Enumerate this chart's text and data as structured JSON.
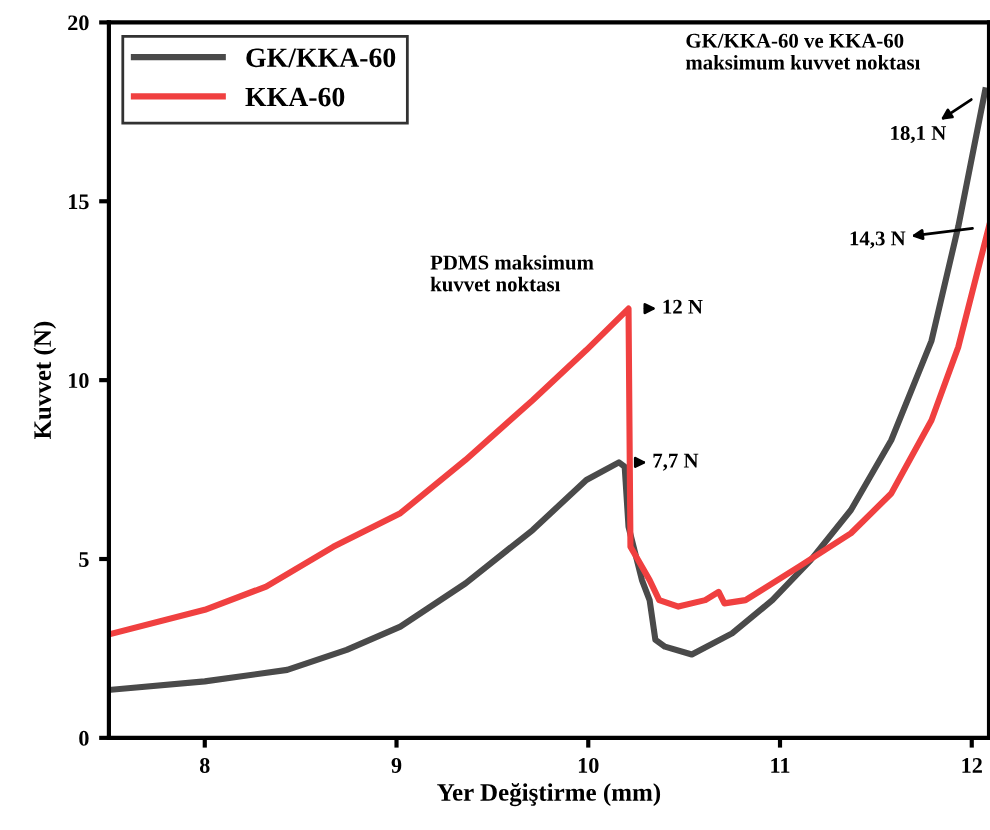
{
  "chart_data": {
    "type": "line",
    "xlabel": "Yer Değiştirme (mm)",
    "ylabel": "Kuvvet (N)",
    "xlim": [
      7.5,
      12.09
    ],
    "ylim": [
      0,
      20
    ],
    "xticks": [
      8,
      9,
      10,
      11,
      12
    ],
    "yticks": [
      0,
      5,
      10,
      15,
      20
    ],
    "grid": false,
    "legend": "top left",
    "marker": "none",
    "line_style": "solid",
    "series": [
      {
        "name": "GK/KKA-60",
        "color": "#4a4a4a",
        "x": [
          7.5,
          8.0,
          8.43,
          8.74,
          9.02,
          9.36,
          9.71,
          9.99,
          10.16,
          10.19,
          10.21,
          10.28,
          10.32,
          10.35,
          10.4,
          10.54,
          10.75,
          10.96,
          11.16,
          11.37,
          11.58,
          11.79,
          11.93,
          12.07
        ],
        "values": [
          1.34,
          1.58,
          1.9,
          2.46,
          3.11,
          4.32,
          5.81,
          7.21,
          7.7,
          7.58,
          5.9,
          4.41,
          3.85,
          2.74,
          2.55,
          2.33,
          2.92,
          3.85,
          4.97,
          6.37,
          8.32,
          11.1,
          14.3,
          18.1
        ]
      },
      {
        "name": "KKA-60",
        "color": "#f04040",
        "x": [
          7.5,
          8.0,
          8.32,
          8.67,
          9.02,
          9.36,
          9.71,
          9.99,
          10.21,
          10.22,
          10.26,
          10.32,
          10.37,
          10.47,
          10.61,
          10.68,
          10.71,
          10.82,
          11.1,
          11.37,
          11.58,
          11.79,
          11.93,
          12.09
        ],
        "values": [
          2.89,
          3.58,
          4.23,
          5.34,
          6.28,
          7.77,
          9.44,
          10.84,
          12.0,
          5.34,
          4.97,
          4.41,
          3.85,
          3.67,
          3.85,
          4.08,
          3.76,
          3.85,
          4.79,
          5.72,
          6.83,
          8.88,
          10.93,
          14.3
        ]
      }
    ],
    "annotations": [
      "PDMS maksimum\nkuvvet noktası",
      "GK/KKA-60 ve KKA-60\nmaksimum kuvvet noktası",
      {
        "text": "12 N",
        "x": 10.21,
        "y": 12
      },
      {
        "text": "7,7 N",
        "x": 10.16,
        "y": 7.7
      },
      {
        "text": "18,1 N",
        "x": 12.07,
        "y": 18.1
      },
      {
        "text": "14,3 N",
        "x": 12.09,
        "y": 14.3
      }
    ]
  }
}
